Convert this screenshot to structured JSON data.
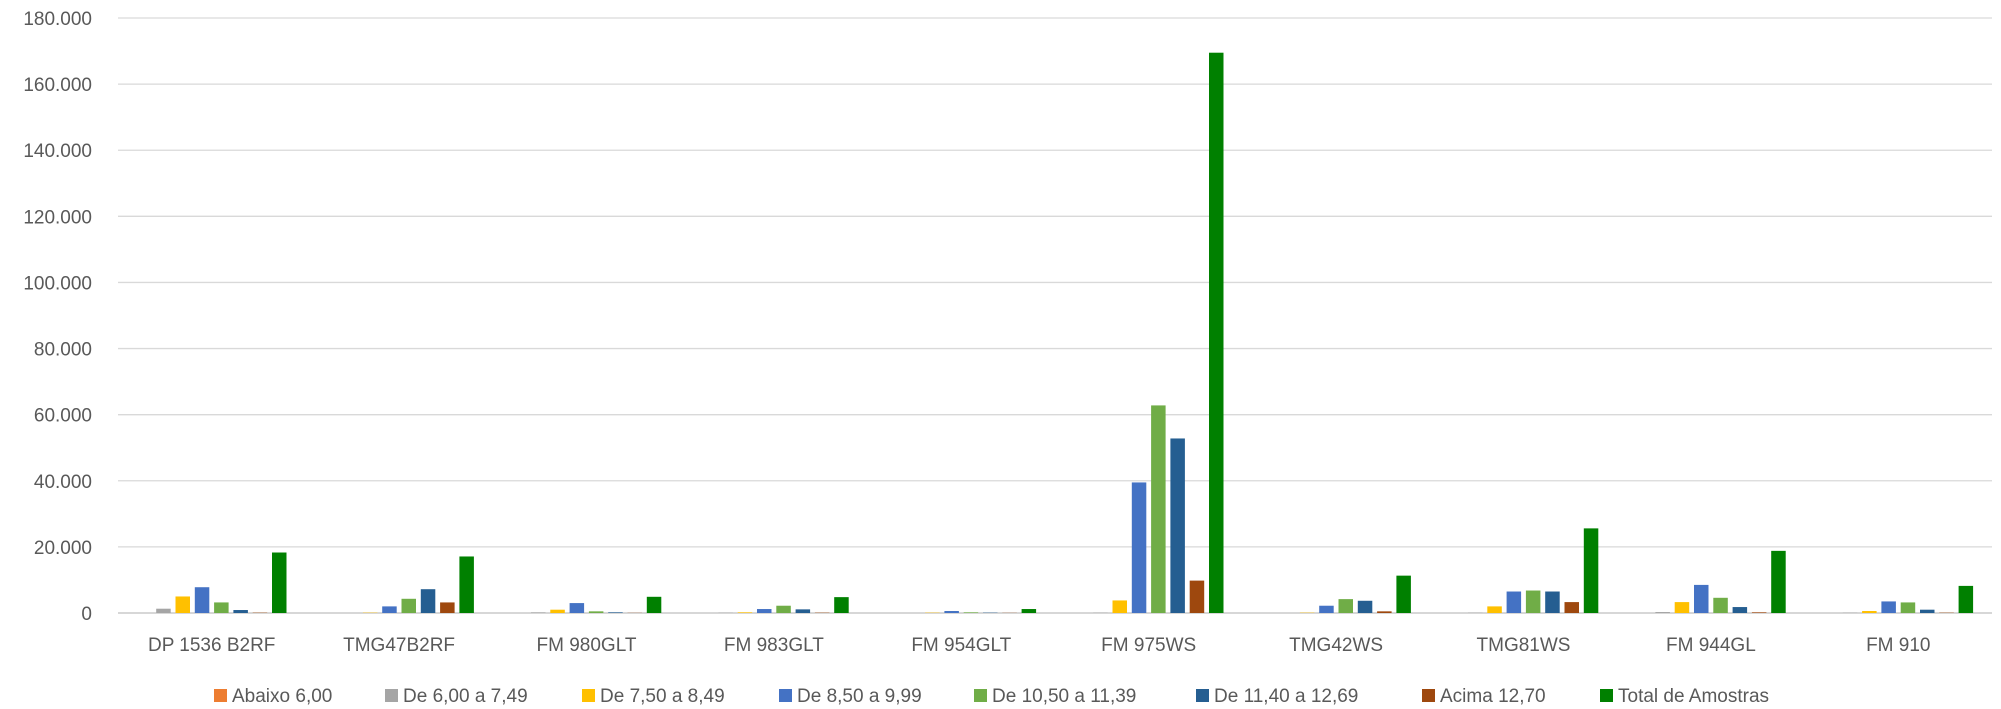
{
  "chart_data": {
    "type": "bar",
    "title": "",
    "xlabel": "",
    "ylabel": "",
    "ylim": [
      0,
      180000
    ],
    "y_ticks": [
      0,
      20000,
      40000,
      60000,
      80000,
      100000,
      120000,
      140000,
      160000,
      180000
    ],
    "y_tick_labels": [
      "0",
      "20.000",
      "40.000",
      "60.000",
      "80.000",
      "100.000",
      "120.000",
      "140.000",
      "160.000",
      "180.000"
    ],
    "grid": "horizontal",
    "legend_position": "bottom",
    "categories": [
      "DP 1536 B2RF",
      "TMG47B2RF",
      "FM 980GLT",
      "FM 983GLT",
      "FM 954GLT",
      "FM 975WS",
      "TMG42WS",
      "TMG81WS",
      "FM 944GL",
      "FM 910"
    ],
    "series": [
      {
        "name": "Abaixo 6,00",
        "color": "#ED7D31",
        "values": [
          0,
          0,
          0,
          0,
          0,
          0,
          0,
          0,
          0,
          0
        ]
      },
      {
        "name": "De 6,00 a 7,49",
        "color": "#A5A5A5",
        "values": [
          1300,
          0,
          200,
          100,
          0,
          100,
          0,
          100,
          300,
          100
        ]
      },
      {
        "name": "De 7,50 a 8,49",
        "color": "#FFC000",
        "values": [
          5000,
          100,
          1000,
          200,
          100,
          3800,
          100,
          2000,
          3300,
          600
        ]
      },
      {
        "name": "De 8,50 a 9,99",
        "color": "#4472C4",
        "values": [
          7800,
          2000,
          3000,
          1200,
          600,
          39500,
          2200,
          6500,
          8500,
          3500
        ]
      },
      {
        "name": "De 10,50 a 11,39",
        "color": "#70AD47",
        "values": [
          3200,
          4300,
          500,
          2200,
          200,
          62800,
          4200,
          6800,
          4600,
          3200
        ]
      },
      {
        "name": "De 11,40 a 12,69",
        "color": "#255E91",
        "values": [
          900,
          7200,
          200,
          1100,
          100,
          52800,
          3700,
          6500,
          1800,
          1000
        ]
      },
      {
        "name": "Acima 12,70",
        "color": "#9E480E",
        "values": [
          100,
          3200,
          50,
          100,
          50,
          9800,
          500,
          3300,
          200,
          100
        ]
      },
      {
        "name": "Total de Amostras",
        "color": "#008000",
        "values": [
          18300,
          17100,
          4900,
          4800,
          1200,
          169500,
          11300,
          25600,
          18800,
          8200
        ]
      }
    ]
  }
}
